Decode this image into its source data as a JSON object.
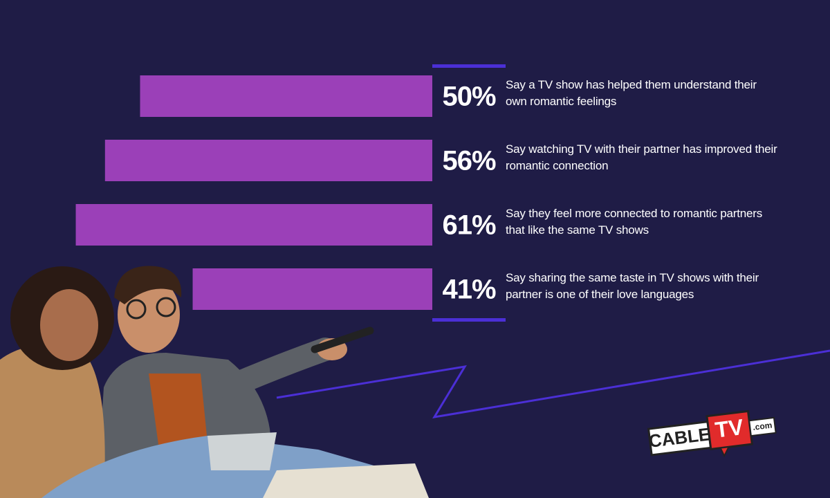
{
  "chart_data": {
    "type": "bar",
    "orientation": "horizontal",
    "categories": [
      "Say a TV show has helped them understand their own romantic feelings",
      "Say watching TV with their partner has improved their romantic connection",
      "Say they feel more connected to romantic partners that like the same TV shows",
      "Say sharing the same taste in TV shows with their partner is one of their love languages"
    ],
    "values": [
      50,
      56,
      61,
      41
    ],
    "value_labels": [
      "50%",
      "56%",
      "61%",
      "41%"
    ],
    "color": "#9b40b8"
  },
  "logo": {
    "brand": "CABLE",
    "highlight": "TV",
    "suffix": ".com"
  }
}
